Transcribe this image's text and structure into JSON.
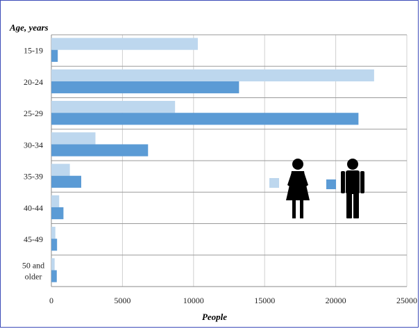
{
  "chart_data": {
    "type": "bar",
    "orientation": "horizontal",
    "ylabel": "Age, years",
    "xlabel": "People",
    "categories": [
      "15-19",
      "20-24",
      "25-29",
      "30-34",
      "35-39",
      "40-44",
      "45-49",
      "50 and\nolder"
    ],
    "series": [
      {
        "values": [
          10300,
          22700,
          8700,
          3100,
          1300,
          550,
          280,
          230
        ],
        "color": "#bdd7ee",
        "legend_icon": "female-silhouette-icon"
      },
      {
        "values": [
          450,
          13200,
          21600,
          6800,
          2100,
          850,
          400,
          380
        ],
        "color": "#5b9bd5",
        "legend_icon": "male-silhouette-icon"
      }
    ],
    "xlim": [
      0,
      25000
    ],
    "xticks": [
      0,
      5000,
      10000,
      15000,
      20000,
      25000
    ],
    "grid": true,
    "legend_placement": "right-middle"
  }
}
